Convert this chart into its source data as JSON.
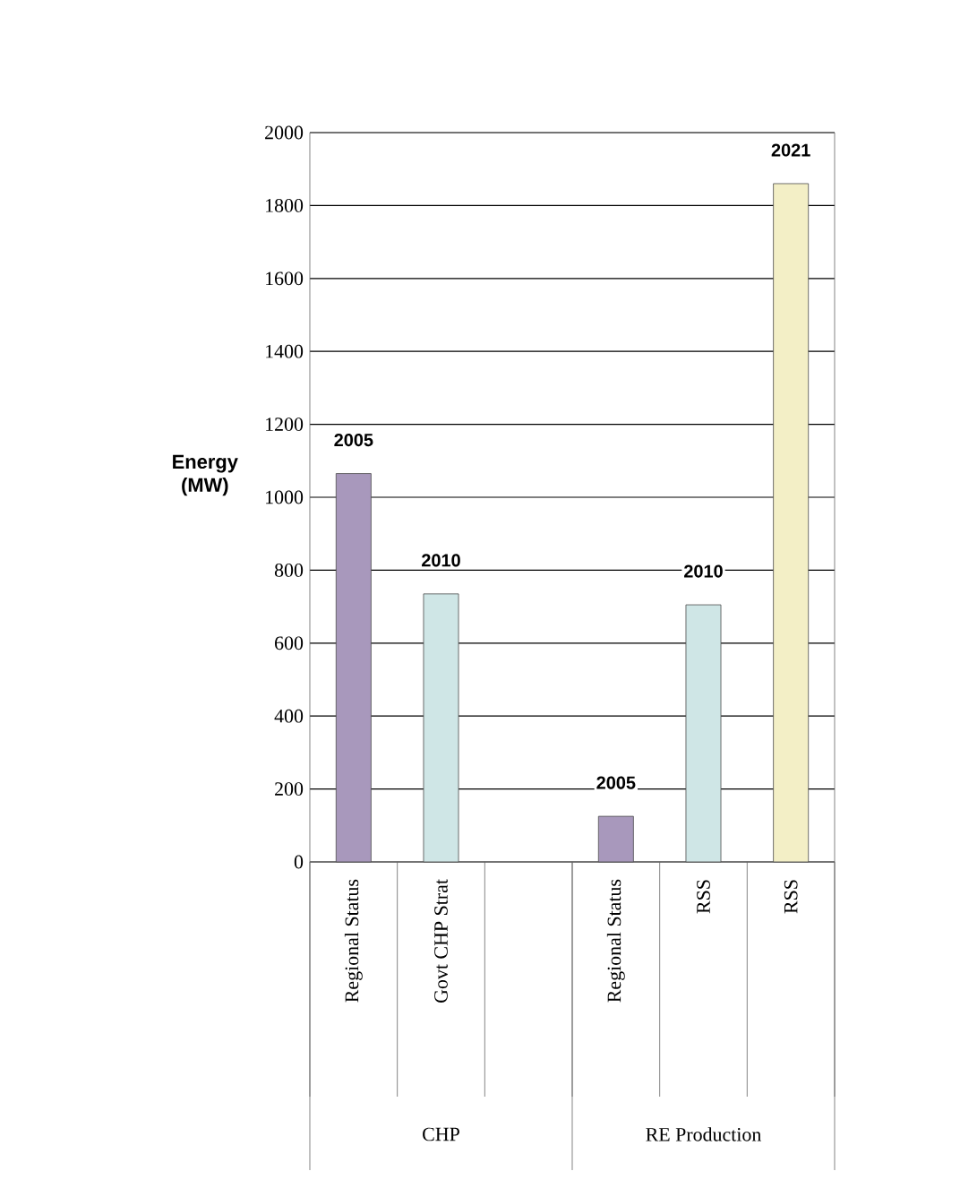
{
  "chart_data": {
    "type": "bar",
    "ylabel": "Energy (MW)",
    "categories": [
      "Regional Status",
      "Govt CHP Strat",
      null,
      "Regional Status",
      "RSS",
      "RSS"
    ],
    "series": [
      {
        "name": "2005",
        "color": "#a898bc",
        "values": [
          1065,
          null,
          null,
          125,
          null,
          null
        ]
      },
      {
        "name": "2010",
        "color": "#cfe6e6",
        "values": [
          null,
          735,
          null,
          null,
          705,
          null
        ]
      },
      {
        "name": "2021",
        "color": "#f3efc6",
        "values": [
          null,
          null,
          null,
          null,
          null,
          1860
        ]
      }
    ],
    "annotations": [
      "CHP",
      "RE Production"
    ],
    "ylim": [
      0,
      2000
    ],
    "yticks": [
      0,
      200,
      400,
      600,
      800,
      1000,
      1200,
      1400,
      1600,
      1800,
      2000
    ],
    "grid": "y"
  }
}
